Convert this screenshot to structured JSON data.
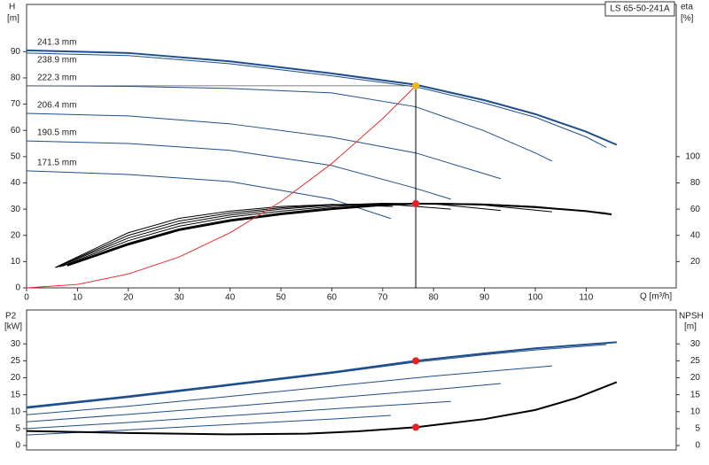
{
  "chart_data": [
    {
      "type": "line",
      "title": "LS 65-50-241A",
      "y_label": "H",
      "y_unit": "[m]",
      "y2_label": "eta",
      "y2_unit": "[%]",
      "x_label": "Q [m³/h]",
      "xlim": [
        0,
        127.7
      ],
      "xticks": [
        0,
        10,
        20,
        30,
        40,
        50,
        60,
        70,
        80,
        90,
        100,
        110
      ],
      "ylim": [
        0,
        108
      ],
      "yticks": [
        0,
        10,
        20,
        30,
        40,
        50,
        60,
        70,
        80,
        90
      ],
      "y2lim": [
        0,
        216
      ],
      "y2ticks": [
        20,
        40,
        60,
        80,
        100
      ],
      "series": [
        {
          "name": "241.3 mm",
          "color": "#1f4e8c",
          "x": [
            0,
            20,
            40,
            60,
            76.5,
            90,
            100,
            110,
            116
          ],
          "values": [
            90.5,
            89.5,
            86.3,
            81.7,
            77.4,
            71.5,
            66.2,
            59.5,
            54.5
          ]
        },
        {
          "name": "238.9 mm",
          "color": "#1f4e8c",
          "x": [
            0,
            20,
            40,
            60,
            76.5,
            90,
            100,
            110,
            114
          ],
          "values": [
            89.5,
            88.5,
            85.4,
            80.8,
            76.6,
            70.4,
            65,
            57.5,
            53.5
          ]
        },
        {
          "name": "222.3 mm",
          "color": "#1f4e8c",
          "x": [
            0,
            20,
            40,
            60,
            76.5,
            90,
            100,
            103.3
          ],
          "values": [
            77,
            76.8,
            76,
            74.3,
            69,
            59.8,
            51.4,
            48.3
          ]
        },
        {
          "name": "206.4 mm",
          "color": "#1f4e8c",
          "x": [
            0,
            20,
            40,
            60,
            76.5,
            93.2
          ],
          "values": [
            66.5,
            65.5,
            62.5,
            57.4,
            51.4,
            41.6
          ]
        },
        {
          "name": "190.5 mm",
          "color": "#1f4e8c",
          "x": [
            0,
            20,
            40,
            60,
            76,
            83.4
          ],
          "values": [
            56,
            55,
            52.4,
            46.6,
            38.2,
            33.8
          ]
        },
        {
          "name": "171.5 mm",
          "color": "#1f4e8c",
          "x": [
            0,
            20,
            40,
            60,
            71.6
          ],
          "values": [
            44.6,
            43.2,
            40.5,
            33.8,
            26.4
          ]
        },
        {
          "axis": "y2",
          "color": "#000000",
          "x": [
            8,
            20,
            30,
            40,
            50,
            60,
            70,
            76.5,
            90,
            100,
            110,
            115
          ],
          "values": [
            17,
            33,
            44,
            51,
            56,
            60,
            63,
            64.2,
            63.5,
            61.5,
            58.5,
            56
          ]
        },
        {
          "axis": "y2",
          "color": "#000000",
          "x": [
            7,
            20,
            30,
            40,
            50,
            60,
            70,
            80,
            90,
            100,
            114
          ],
          "values": [
            16.5,
            34,
            45,
            52,
            57,
            61,
            63.5,
            64.5,
            63.8,
            62,
            57
          ]
        },
        {
          "axis": "y2",
          "color": "#000000",
          "x": [
            6.5,
            20,
            30,
            40,
            50,
            60,
            70,
            80,
            90,
            103.3
          ],
          "values": [
            16,
            36,
            47,
            54,
            58.5,
            62,
            64,
            64.5,
            63,
            58
          ]
        },
        {
          "axis": "y2",
          "color": "#000000",
          "x": [
            6,
            20,
            30,
            40,
            50,
            60,
            70,
            80,
            93.2
          ],
          "values": [
            15.8,
            38,
            49,
            55.5,
            60,
            63,
            64.5,
            64,
            59
          ]
        },
        {
          "axis": "y2",
          "color": "#000000",
          "x": [
            5.8,
            20,
            30,
            40,
            50,
            60,
            70,
            83.4
          ],
          "values": [
            15.6,
            40,
            51,
            57,
            61,
            63.5,
            64,
            60
          ]
        },
        {
          "axis": "y2",
          "color": "#000000",
          "x": [
            5.6,
            20,
            30,
            40,
            50,
            60,
            72
          ],
          "values": [
            15.5,
            42,
            53,
            58.5,
            62,
            63.5,
            62
          ]
        },
        {
          "color": "#e83030",
          "x": [
            0,
            10,
            20,
            30,
            40,
            50,
            60,
            70,
            76.5
          ],
          "values": [
            0,
            1.3,
            5.3,
            11.8,
            21,
            32.9,
            47.4,
            64.5,
            77
          ]
        }
      ],
      "operating_point": {
        "x": 76.5,
        "y": 77,
        "eta": 64.2
      }
    },
    {
      "type": "line",
      "y_label": "P2",
      "y_unit": "[kW]",
      "y2_label": "NPSH",
      "y2_unit": "[m]",
      "xlim": [
        0,
        127.7
      ],
      "ylim": [
        -1.3,
        40
      ],
      "yticks": [
        0,
        5,
        10,
        15,
        20,
        25,
        30
      ],
      "y2lim": [
        -1.3,
        40
      ],
      "y2ticks": [
        0,
        5,
        10,
        15,
        20,
        25,
        30
      ],
      "series": [
        {
          "color": "#1f4e8c",
          "x": [
            0,
            20,
            40,
            60,
            76.5,
            90,
            100,
            116
          ],
          "values": [
            11.3,
            14.5,
            18,
            21.6,
            25,
            27.2,
            28.7,
            30.5
          ]
        },
        {
          "color": "#1f4e8c",
          "x": [
            0,
            20,
            40,
            60,
            76.5,
            90,
            100,
            114
          ],
          "values": [
            11,
            14.2,
            17.7,
            21.3,
            24.6,
            26.8,
            28.2,
            29.8
          ]
        },
        {
          "color": "#1f4e8c",
          "x": [
            0,
            20,
            40,
            60,
            80,
            103.3
          ],
          "values": [
            9.1,
            11.6,
            14.5,
            17.5,
            20.5,
            23.5
          ]
        },
        {
          "color": "#1f4e8c",
          "x": [
            0,
            20,
            40,
            60,
            80,
            93.2
          ],
          "values": [
            7,
            9.2,
            11.5,
            14,
            16.5,
            18.3
          ]
        },
        {
          "color": "#1f4e8c",
          "x": [
            0,
            20,
            40,
            60,
            83.4
          ],
          "values": [
            5,
            6.8,
            8.8,
            10.8,
            13
          ]
        },
        {
          "color": "#1f4e8c",
          "x": [
            0,
            20,
            40,
            60,
            71.6
          ],
          "values": [
            3.1,
            4.6,
            6.2,
            7.8,
            8.9
          ]
        },
        {
          "axis": "y2",
          "color": "#000000",
          "x": [
            0,
            20,
            40,
            55,
            65,
            76.5,
            90,
            100,
            108,
            116
          ],
          "values": [
            4.3,
            3.7,
            3.3,
            3.5,
            4.2,
            5.4,
            7.8,
            10.5,
            14,
            18.7
          ]
        }
      ],
      "operating_point": {
        "x": 76.5,
        "p2": 25,
        "npsh": 5.4
      }
    }
  ]
}
